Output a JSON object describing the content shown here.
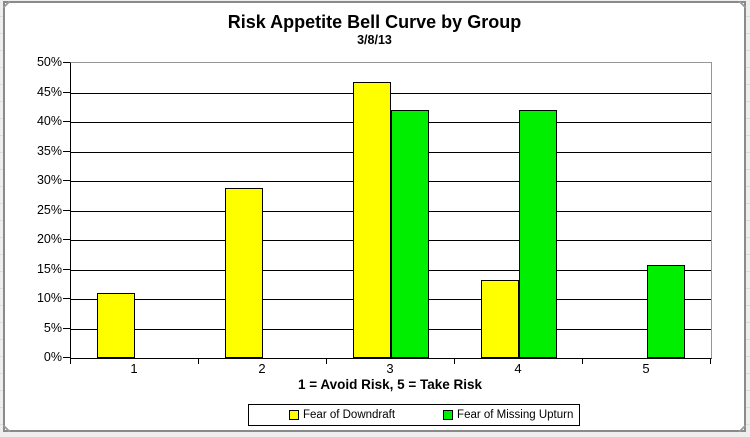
{
  "chart_data": {
    "type": "bar",
    "title": "Risk Appetite Bell Curve by Group",
    "subtitle": "3/8/13",
    "xlabel": "1 = Avoid Risk, 5 = Take Risk",
    "ylabel": "",
    "categories": [
      "1",
      "2",
      "3",
      "4",
      "5"
    ],
    "series": [
      {
        "name": "Fear of Downdraft",
        "color": "#FFFF00",
        "values": [
          11.1,
          28.9,
          46.7,
          13.3,
          0
        ]
      },
      {
        "name": "Fear of Missing Upturn",
        "color": "#00EE00",
        "values": [
          0,
          0,
          42.1,
          42.1,
          15.8
        ]
      }
    ],
    "ylim": [
      0,
      50
    ],
    "y_tick_step": 5,
    "y_tick_labels": [
      "0%",
      "5%",
      "10%",
      "15%",
      "20%",
      "25%",
      "30%",
      "35%",
      "40%",
      "45%",
      "50%"
    ],
    "grid": true,
    "legend_position": "bottom",
    "colors": {
      "gridline": "#000000",
      "plot_border": "#969696",
      "axis": "#000000",
      "chart_background": "#FFFFFF",
      "frame_border": "#8A8A8A"
    }
  }
}
